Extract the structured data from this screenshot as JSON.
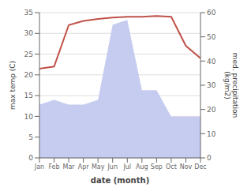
{
  "chart_data": {
    "type": "line",
    "categories": [
      "Jan",
      "Feb",
      "Mar",
      "Apr",
      "May",
      "Jun",
      "Jul",
      "Aug",
      "Sep",
      "Oct",
      "Nov",
      "Dec"
    ],
    "series": [
      {
        "type": "area",
        "axis": "y2",
        "color": "#c5ccf0",
        "values": [
          22.0,
          24.0,
          22.0,
          22.0,
          24.0,
          55.0,
          57.0,
          28.0,
          28.0,
          17.0,
          17.0,
          17.0
        ]
      },
      {
        "type": "line",
        "color": "#c0524a",
        "values": [
          21.5,
          22.0,
          32.0,
          33.0,
          33.5,
          33.8,
          34.0,
          34.0,
          34.2,
          34.0,
          27.0,
          24.0
        ]
      }
    ],
    "xlabel": "date (month)",
    "ylabel": "max temp (C)",
    "y2label": "med. precipitation\n(kg/m2)",
    "ylim": [
      0,
      35
    ],
    "yticks": [
      0,
      5,
      10,
      15,
      20,
      25,
      30,
      35
    ],
    "y2lim": [
      0,
      60
    ],
    "y2ticks": [
      0,
      10,
      20,
      30,
      40,
      50,
      60
    ],
    "grid": true
  }
}
